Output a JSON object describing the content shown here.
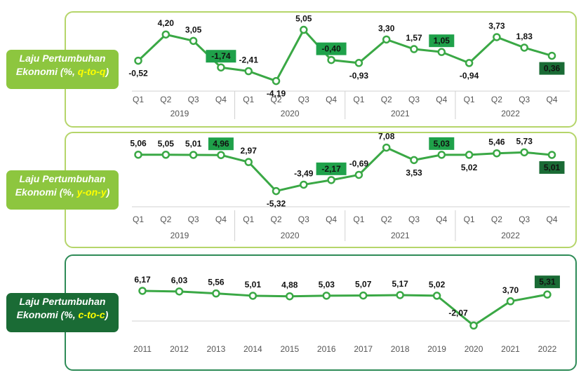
{
  "colors": {
    "line": "#3aa845",
    "highlight_box": "#1fa14a",
    "last_box": "#1a6b35",
    "last_text": "#ffff00",
    "negative_red": "#c00000"
  },
  "panels": [
    {
      "label_text": "Laju Pertumbuhan Ekonomi (%, ",
      "label_highlight": "q-to-q",
      "label_close": ")"
    },
    {
      "label_text": "Laju Pertumbuhan Ekonomi (%, ",
      "label_highlight": "y-on-y",
      "label_close": ")"
    },
    {
      "label_text": "Laju Pertumbuhan Ekonomi (%, ",
      "label_highlight": "c-to-c",
      "label_close": ")"
    }
  ],
  "chart_data": [
    {
      "type": "line",
      "title": "Laju Pertumbuhan Ekonomi (%, q-to-q)",
      "quarters": [
        "Q1",
        "Q2",
        "Q3",
        "Q4",
        "Q1",
        "Q2",
        "Q3",
        "Q4",
        "Q1",
        "Q2",
        "Q3",
        "Q4",
        "Q1",
        "Q2",
        "Q3",
        "Q4"
      ],
      "years": [
        "2019",
        "2020",
        "2021",
        "2022"
      ],
      "values": [
        -0.52,
        4.2,
        3.05,
        -1.74,
        -2.41,
        -4.19,
        5.05,
        -0.4,
        -0.93,
        3.3,
        1.57,
        1.05,
        -0.94,
        3.73,
        1.83,
        0.36
      ],
      "labels": [
        "-0,52",
        "4,20",
        "3,05",
        "-1,74",
        "-2,41",
        "-4,19",
        "5,05",
        "-0,40",
        "-0,93",
        "3,30",
        "1,57",
        "1,05",
        "-0,94",
        "3,73",
        "1,83",
        "0,36"
      ],
      "highlighted": [
        3,
        7,
        11
      ],
      "last_highlight": 15,
      "ylim": [
        -5,
        6
      ]
    },
    {
      "type": "line",
      "title": "Laju Pertumbuhan Ekonomi (%, y-on-y)",
      "quarters": [
        "Q1",
        "Q2",
        "Q3",
        "Q4",
        "Q1",
        "Q2",
        "Q3",
        "Q4",
        "Q1",
        "Q2",
        "Q3",
        "Q4",
        "Q1",
        "Q2",
        "Q3",
        "Q4"
      ],
      "years": [
        "2019",
        "2020",
        "2021",
        "2022"
      ],
      "values": [
        5.06,
        5.05,
        5.01,
        4.96,
        2.97,
        -5.32,
        -3.49,
        -2.17,
        -0.69,
        7.08,
        3.53,
        5.03,
        5.02,
        5.46,
        5.73,
        5.01
      ],
      "labels": [
        "5,06",
        "5,05",
        "5,01",
        "4,96",
        "2,97",
        "-5,32",
        "-3,49",
        "-2,17",
        "-0,69",
        "7,08",
        "3,53",
        "5,03",
        "5,02",
        "5,46",
        "5,73",
        "5,01"
      ],
      "highlighted": [
        3,
        7,
        11
      ],
      "last_highlight": 15,
      "ylim": [
        -6,
        8
      ]
    },
    {
      "type": "line",
      "title": "Laju Pertumbuhan Ekonomi (%, c-to-c)",
      "categories": [
        "2011",
        "2012",
        "2013",
        "2014",
        "2015",
        "2016",
        "2017",
        "2018",
        "2019",
        "2020",
        "2021",
        "2022"
      ],
      "values": [
        6.17,
        6.03,
        5.56,
        5.01,
        4.88,
        5.03,
        5.07,
        5.17,
        5.02,
        -2.07,
        3.7,
        5.31
      ],
      "labels": [
        "6,17",
        "6,03",
        "5,56",
        "5,01",
        "4,88",
        "5,03",
        "5,07",
        "5,17",
        "5,02",
        "-2,07",
        "3,70",
        "5,31"
      ],
      "negative_red": [
        9
      ],
      "last_highlight": 11,
      "ylim": [
        -3,
        7
      ]
    }
  ]
}
